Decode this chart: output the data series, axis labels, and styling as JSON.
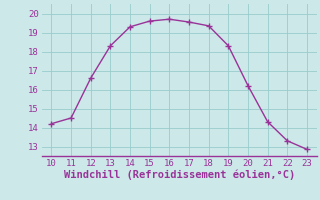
{
  "x": [
    10,
    11,
    12,
    13,
    14,
    15,
    16,
    17,
    18,
    19,
    20,
    21,
    22,
    23
  ],
  "y": [
    14.2,
    14.5,
    16.6,
    18.3,
    19.3,
    19.6,
    19.7,
    19.55,
    19.35,
    18.3,
    16.2,
    14.3,
    13.3,
    12.85
  ],
  "line_color": "#993399",
  "marker": "+",
  "marker_size": 4,
  "marker_color": "#993399",
  "line_width": 1.0,
  "xlabel": "Windchill (Refroidissement éolien,°C)",
  "xlabel_fontsize": 7.5,
  "xlabel_color": "#993399",
  "xlim": [
    9.5,
    23.5
  ],
  "ylim": [
    12.5,
    20.5
  ],
  "xticks": [
    10,
    11,
    12,
    13,
    14,
    15,
    16,
    17,
    18,
    19,
    20,
    21,
    22,
    23
  ],
  "yticks": [
    13,
    14,
    15,
    16,
    17,
    18,
    19,
    20
  ],
  "tick_fontsize": 6.5,
  "tick_color": "#993399",
  "grid_color": "#99cccc",
  "background_color": "#cce8e8",
  "figure_bg": "#cce8e8",
  "spine_color": "#993399"
}
